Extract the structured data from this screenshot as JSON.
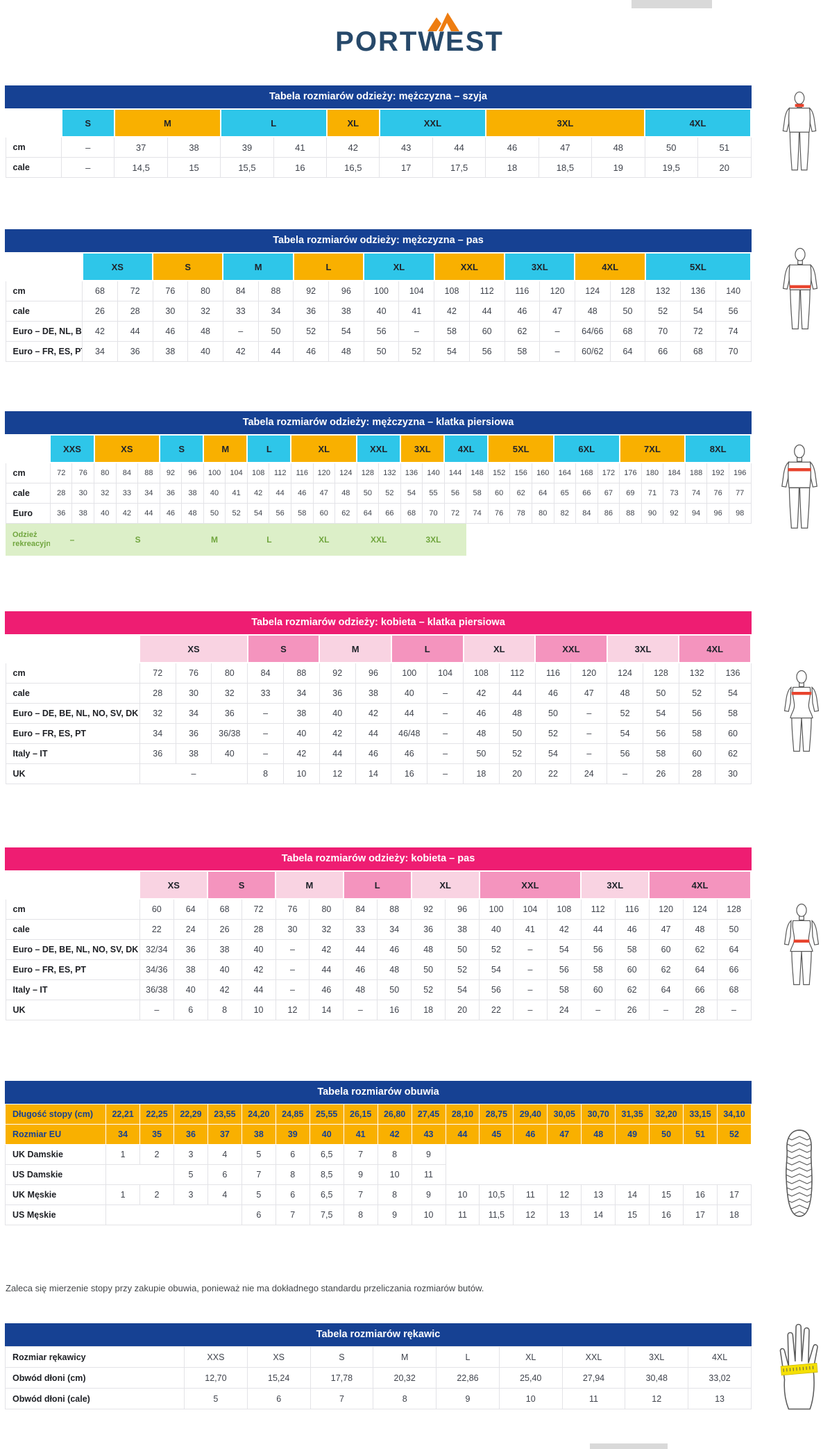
{
  "logo": {
    "text": "PORTWEST"
  },
  "colors": {
    "brand_blue": "#164193",
    "brand_navy": "#27496a",
    "brand_orange": "#ee7d11",
    "cyan": "#2ec6e9",
    "yellow": "#f9b000",
    "pink": "#ee1d72",
    "pink_light": "#f9d3e2",
    "pink_mid": "#f494be",
    "green_bg": "#dcefc8",
    "green_text": "#71a63f",
    "red_band": "#e8432d",
    "hand_band": "#f5e003"
  },
  "shoe_note": "Zaleca się mierzenie stopy przy zakupie obuwia, ponieważ nie ma dokładnego standardu przeliczania rozmiarów butów.",
  "tables": [
    {
      "id": "men-neck",
      "title": "Tabela rozmiarów odzieży: mężczyzna – szyja",
      "theme": "blue",
      "cols": 13,
      "label_w": 7.5,
      "figure": {
        "type": "male",
        "highlight": "neck"
      },
      "header": [
        {
          "label": "S",
          "span": 1,
          "c": "cyan"
        },
        {
          "label": "M",
          "span": 2,
          "c": "yellow"
        },
        {
          "label": "L",
          "span": 2,
          "c": "cyan"
        },
        {
          "label": "XL",
          "span": 1,
          "c": "yellow"
        },
        {
          "label": "XXL",
          "span": 2,
          "c": "cyan"
        },
        {
          "label": "3XL",
          "span": 3,
          "c": "yellow"
        },
        {
          "label": "4XL",
          "span": 2,
          "c": "cyan"
        }
      ],
      "rows": [
        {
          "label": "cm",
          "cells": [
            "–",
            "37",
            "38",
            "39",
            "41",
            "42",
            "43",
            "44",
            "46",
            "47",
            "48",
            "50",
            "51"
          ]
        },
        {
          "label": "cale",
          "cells": [
            "–",
            "14,5",
            "15",
            "15,5",
            "16",
            "16,5",
            "17",
            "17,5",
            "18",
            "18,5",
            "19",
            "19,5",
            "20"
          ]
        }
      ]
    },
    {
      "id": "men-waist",
      "title": "Tabela rozmiarów odzieży: mężczyzna – pas",
      "theme": "blue",
      "cols": 19,
      "label_w": 10.3,
      "figure": {
        "type": "male",
        "highlight": "waist"
      },
      "header": [
        {
          "label": "XS",
          "span": 2,
          "c": "cyan"
        },
        {
          "label": "S",
          "span": 2,
          "c": "yellow"
        },
        {
          "label": "M",
          "span": 2,
          "c": "cyan"
        },
        {
          "label": "L",
          "span": 2,
          "c": "yellow"
        },
        {
          "label": "XL",
          "span": 2,
          "c": "cyan"
        },
        {
          "label": "XXL",
          "span": 2,
          "c": "yellow"
        },
        {
          "label": "3XL",
          "span": 2,
          "c": "cyan"
        },
        {
          "label": "4XL",
          "span": 2,
          "c": "yellow"
        },
        {
          "label": "5XL",
          "span": 3,
          "c": "cyan"
        }
      ],
      "rows": [
        {
          "label": "cm",
          "cells": [
            "68",
            "72",
            "76",
            "80",
            "84",
            "88",
            "92",
            "96",
            "100",
            "104",
            "108",
            "112",
            "116",
            "120",
            "124",
            "128",
            "132",
            "136",
            "140"
          ]
        },
        {
          "label": "cale",
          "cells": [
            "26",
            "28",
            "30",
            "32",
            "33",
            "34",
            "36",
            "38",
            "40",
            "41",
            "42",
            "44",
            "46",
            "47",
            "48",
            "50",
            "52",
            "54",
            "56"
          ]
        },
        {
          "label": "Euro – DE, NL, BE",
          "cells": [
            "42",
            "44",
            "46",
            "48",
            "–",
            "50",
            "52",
            "54",
            "56",
            "–",
            "58",
            "60",
            "62",
            "–",
            "64/66",
            "68",
            "70",
            "72",
            "74"
          ]
        },
        {
          "label": "Euro – FR, ES, PT",
          "cells": [
            "34",
            "36",
            "38",
            "40",
            "42",
            "44",
            "46",
            "48",
            "50",
            "52",
            "54",
            "56",
            "58",
            "–",
            "60/62",
            "64",
            "66",
            "68",
            "70"
          ]
        }
      ]
    },
    {
      "id": "men-chest",
      "title": "Tabela rozmiarów odzieży: mężczyzna – klatka piersiowa",
      "theme": "blue",
      "cols": 32,
      "label_w": 6,
      "figure": {
        "type": "male",
        "highlight": "chest"
      },
      "header": [
        {
          "label": "XXS",
          "span": 2,
          "c": "cyan"
        },
        {
          "label": "XS",
          "span": 3,
          "c": "yellow"
        },
        {
          "label": "S",
          "span": 2,
          "c": "cyan"
        },
        {
          "label": "M",
          "span": 2,
          "c": "yellow"
        },
        {
          "label": "L",
          "span": 2,
          "c": "cyan"
        },
        {
          "label": "XL",
          "span": 3,
          "c": "yellow"
        },
        {
          "label": "XXL",
          "span": 2,
          "c": "cyan"
        },
        {
          "label": "3XL",
          "span": 2,
          "c": "yellow"
        },
        {
          "label": "4XL",
          "span": 2,
          "c": "cyan"
        },
        {
          "label": "5XL",
          "span": 3,
          "c": "yellow"
        },
        {
          "label": "6XL",
          "span": 3,
          "c": "cyan"
        },
        {
          "label": "7XL",
          "span": 3,
          "c": "yellow"
        },
        {
          "label": "8XL",
          "span": 3,
          "c": "cyan"
        }
      ],
      "rows": [
        {
          "label": "cm",
          "cells": [
            "72",
            "76",
            "80",
            "84",
            "88",
            "92",
            "96",
            "100",
            "104",
            "108",
            "112",
            "116",
            "120",
            "124",
            "128",
            "132",
            "136",
            "140",
            "144",
            "148",
            "152",
            "156",
            "160",
            "164",
            "168",
            "172",
            "176",
            "180",
            "184",
            "188",
            "192",
            "196"
          ]
        },
        {
          "label": "cale",
          "cells": [
            "28",
            "30",
            "32",
            "33",
            "34",
            "36",
            "38",
            "40",
            "41",
            "42",
            "44",
            "46",
            "47",
            "48",
            "50",
            "52",
            "54",
            "55",
            "56",
            "58",
            "60",
            "62",
            "64",
            "65",
            "66",
            "67",
            "69",
            "71",
            "73",
            "74",
            "76",
            "77"
          ]
        },
        {
          "label": "Euro",
          "cells": [
            "36",
            "38",
            "40",
            "42",
            "44",
            "46",
            "48",
            "50",
            "52",
            "54",
            "56",
            "58",
            "60",
            "62",
            "64",
            "66",
            "68",
            "70",
            "72",
            "74",
            "76",
            "78",
            "80",
            "82",
            "84",
            "86",
            "88",
            "90",
            "92",
            "94",
            "96",
            "98"
          ]
        },
        {
          "label": "Odzież rekreacyjna",
          "cls": "green",
          "cells": [
            {
              "t": "–",
              "span": 2
            },
            {
              "t": "S",
              "span": 4
            },
            {
              "t": "M",
              "span": 3
            },
            {
              "t": "L",
              "span": 2
            },
            {
              "t": "XL",
              "span": 3
            },
            {
              "t": "XXL",
              "span": 2
            },
            {
              "t": "3XL",
              "span": 3
            },
            {
              "t": "",
              "span": 13,
              "cls": "plain"
            }
          ]
        }
      ]
    },
    {
      "id": "women-chest",
      "title": "Tabela rozmiarów odzieży: kobieta – klatka piersiowa",
      "theme": "pink",
      "cols": 17,
      "label_w": 18,
      "figure": {
        "type": "female",
        "highlight": "chest"
      },
      "header": [
        {
          "label": "XS",
          "span": 3,
          "c": "pl"
        },
        {
          "label": "S",
          "span": 2,
          "c": "pm"
        },
        {
          "label": "M",
          "span": 2,
          "c": "pl"
        },
        {
          "label": "L",
          "span": 2,
          "c": "pm"
        },
        {
          "label": "XL",
          "span": 2,
          "c": "pl"
        },
        {
          "label": "XXL",
          "span": 2,
          "c": "pm"
        },
        {
          "label": "3XL",
          "span": 2,
          "c": "pl"
        },
        {
          "label": "4XL",
          "span": 2,
          "c": "pm"
        }
      ],
      "rows": [
        {
          "label": "cm",
          "cells": [
            "72",
            "76",
            "80",
            "84",
            "88",
            "92",
            "96",
            "100",
            "104",
            "108",
            "112",
            "116",
            "120",
            "124",
            "128",
            "132",
            "136"
          ]
        },
        {
          "label": "cale",
          "cells": [
            "28",
            "30",
            "32",
            "33",
            "34",
            "36",
            "38",
            "40",
            "–",
            "42",
            "44",
            "46",
            "47",
            "48",
            "50",
            "52",
            "54"
          ]
        },
        {
          "label": "Euro – DE, BE, NL, NO, SV, DK",
          "cells": [
            "32",
            "34",
            "36",
            "–",
            "38",
            "40",
            "42",
            "44",
            "–",
            "46",
            "48",
            "50",
            "–",
            "52",
            "54",
            "56",
            "58"
          ]
        },
        {
          "label": "Euro – FR, ES, PT",
          "cells": [
            "34",
            "36",
            "36/38",
            "–",
            "40",
            "42",
            "44",
            "46/48",
            "–",
            "48",
            "50",
            "52",
            "–",
            "54",
            "56",
            "58",
            "60"
          ]
        },
        {
          "label": "Italy – IT",
          "cells": [
            "36",
            "38",
            "40",
            "–",
            "42",
            "44",
            "46",
            "46",
            "–",
            "50",
            "52",
            "54",
            "–",
            "56",
            "58",
            "60",
            "62"
          ]
        },
        {
          "label": "UK",
          "cells": [
            {
              "t": "–",
              "span": 3
            },
            "8",
            "10",
            "12",
            "14",
            "16",
            "–",
            "18",
            "20",
            "22",
            "24",
            "–",
            "26",
            "28",
            "30"
          ]
        }
      ]
    },
    {
      "id": "women-waist",
      "title": "Tabela rozmiarów odzieży: kobieta – pas",
      "theme": "pink",
      "cols": 18,
      "label_w": 18,
      "figure": {
        "type": "female",
        "highlight": "waist"
      },
      "header": [
        {
          "label": "XS",
          "span": 2,
          "c": "pl"
        },
        {
          "label": "S",
          "span": 2,
          "c": "pm"
        },
        {
          "label": "M",
          "span": 2,
          "c": "pl"
        },
        {
          "label": "L",
          "span": 2,
          "c": "pm"
        },
        {
          "label": "XL",
          "span": 2,
          "c": "pl"
        },
        {
          "label": "XXL",
          "span": 3,
          "c": "pm"
        },
        {
          "label": "3XL",
          "span": 2,
          "c": "pl"
        },
        {
          "label": "4XL",
          "span": 3,
          "c": "pm"
        }
      ],
      "rows": [
        {
          "label": "cm",
          "cells": [
            "60",
            "64",
            "68",
            "72",
            "76",
            "80",
            "84",
            "88",
            "92",
            "96",
            "100",
            "104",
            "108",
            "112",
            "116",
            "120",
            "124",
            "128"
          ]
        },
        {
          "label": "cale",
          "cells": [
            "22",
            "24",
            "26",
            "28",
            "30",
            "32",
            "33",
            "34",
            "36",
            "38",
            "40",
            "41",
            "42",
            "44",
            "46",
            "47",
            "48",
            "50"
          ]
        },
        {
          "label": "Euro – DE, BE, NL, NO, SV, DK",
          "cells": [
            "32/34",
            "36",
            "38",
            "40",
            "–",
            "42",
            "44",
            "46",
            "48",
            "50",
            "52",
            "–",
            "54",
            "56",
            "58",
            "60",
            "62",
            "64"
          ]
        },
        {
          "label": "Euro – FR, ES, PT",
          "cells": [
            "34/36",
            "38",
            "40",
            "42",
            "–",
            "44",
            "46",
            "48",
            "50",
            "52",
            "54",
            "–",
            "56",
            "58",
            "60",
            "62",
            "64",
            "66"
          ]
        },
        {
          "label": "Italy – IT",
          "cells": [
            "36/38",
            "40",
            "42",
            "44",
            "–",
            "46",
            "48",
            "50",
            "52",
            "54",
            "56",
            "–",
            "58",
            "60",
            "62",
            "64",
            "66",
            "68"
          ]
        },
        {
          "label": "UK",
          "cells": [
            "–",
            "6",
            "8",
            "10",
            "12",
            "14",
            "–",
            "16",
            "18",
            "20",
            "22",
            "–",
            "24",
            "–",
            "26",
            "–",
            "28",
            "–"
          ]
        }
      ]
    },
    {
      "id": "shoes",
      "title": "Tabela rozmiarów obuwia",
      "theme": "blue",
      "cols": 19,
      "label_w": 13.5,
      "figure": {
        "type": "shoe"
      },
      "rows": [
        {
          "label": "Długość stopy (cm)",
          "cls": "yellow",
          "cells": [
            "22,21",
            "22,25",
            "22,29",
            "23,55",
            "24,20",
            "24,85",
            "25,55",
            "26,15",
            "26,80",
            "27,45",
            "28,10",
            "28,75",
            "29,40",
            "30,05",
            "30,70",
            "31,35",
            "32,20",
            "33,15",
            "34,10"
          ]
        },
        {
          "label": "Rozmiar EU",
          "cls": "yellow",
          "cells": [
            "34",
            "35",
            "36",
            "37",
            "38",
            "39",
            "40",
            "41",
            "42",
            "43",
            "44",
            "45",
            "46",
            "47",
            "48",
            "49",
            "50",
            "51",
            "52"
          ]
        },
        {
          "label": "UK Damskie",
          "cells": [
            "1",
            "2",
            "3",
            "4",
            "5",
            "6",
            "6,5",
            "7",
            "8",
            "9",
            {
              "t": "",
              "span": 9,
              "cls": "plain"
            }
          ]
        },
        {
          "label": "US Damskie",
          "cells": [
            {
              "t": "",
              "span": 2
            },
            "5",
            "6",
            "7",
            "8",
            "8,5",
            "9",
            "10",
            "11",
            {
              "t": "",
              "span": 9,
              "cls": "plain"
            }
          ]
        },
        {
          "label": "UK Męskie",
          "cells": [
            "1",
            "2",
            "3",
            "4",
            "5",
            "6",
            "6,5",
            "7",
            "8",
            "9",
            "10",
            "10,5",
            "11",
            "12",
            "13",
            "14",
            "15",
            "16",
            "17"
          ]
        },
        {
          "label": "US Męskie",
          "cells": [
            {
              "t": "",
              "span": 4
            },
            "6",
            "7",
            "7,5",
            "8",
            "9",
            "10",
            "11",
            "11,5",
            "12",
            "13",
            "14",
            "15",
            "16",
            "17",
            "18"
          ]
        }
      ]
    },
    {
      "id": "gloves",
      "title": "Tabela rozmiarów rękawic",
      "theme": "blue",
      "cols": 9,
      "label_w": 24,
      "figure": {
        "type": "hand"
      },
      "rows": [
        {
          "label": "Rozmiar rękawicy",
          "cells": [
            "XXS",
            "XS",
            "S",
            "M",
            "L",
            "XL",
            "XXL",
            "3XL",
            "4XL"
          ]
        },
        {
          "label": "Obwód dłoni (cm)",
          "cells": [
            "12,70",
            "15,24",
            "17,78",
            "20,32",
            "22,86",
            "25,40",
            "27,94",
            "30,48",
            "33,02"
          ]
        },
        {
          "label": "Obwód dłoni (cale)",
          "cells": [
            "5",
            "6",
            "7",
            "8",
            "9",
            "10",
            "11",
            "12",
            "13"
          ]
        }
      ]
    }
  ]
}
